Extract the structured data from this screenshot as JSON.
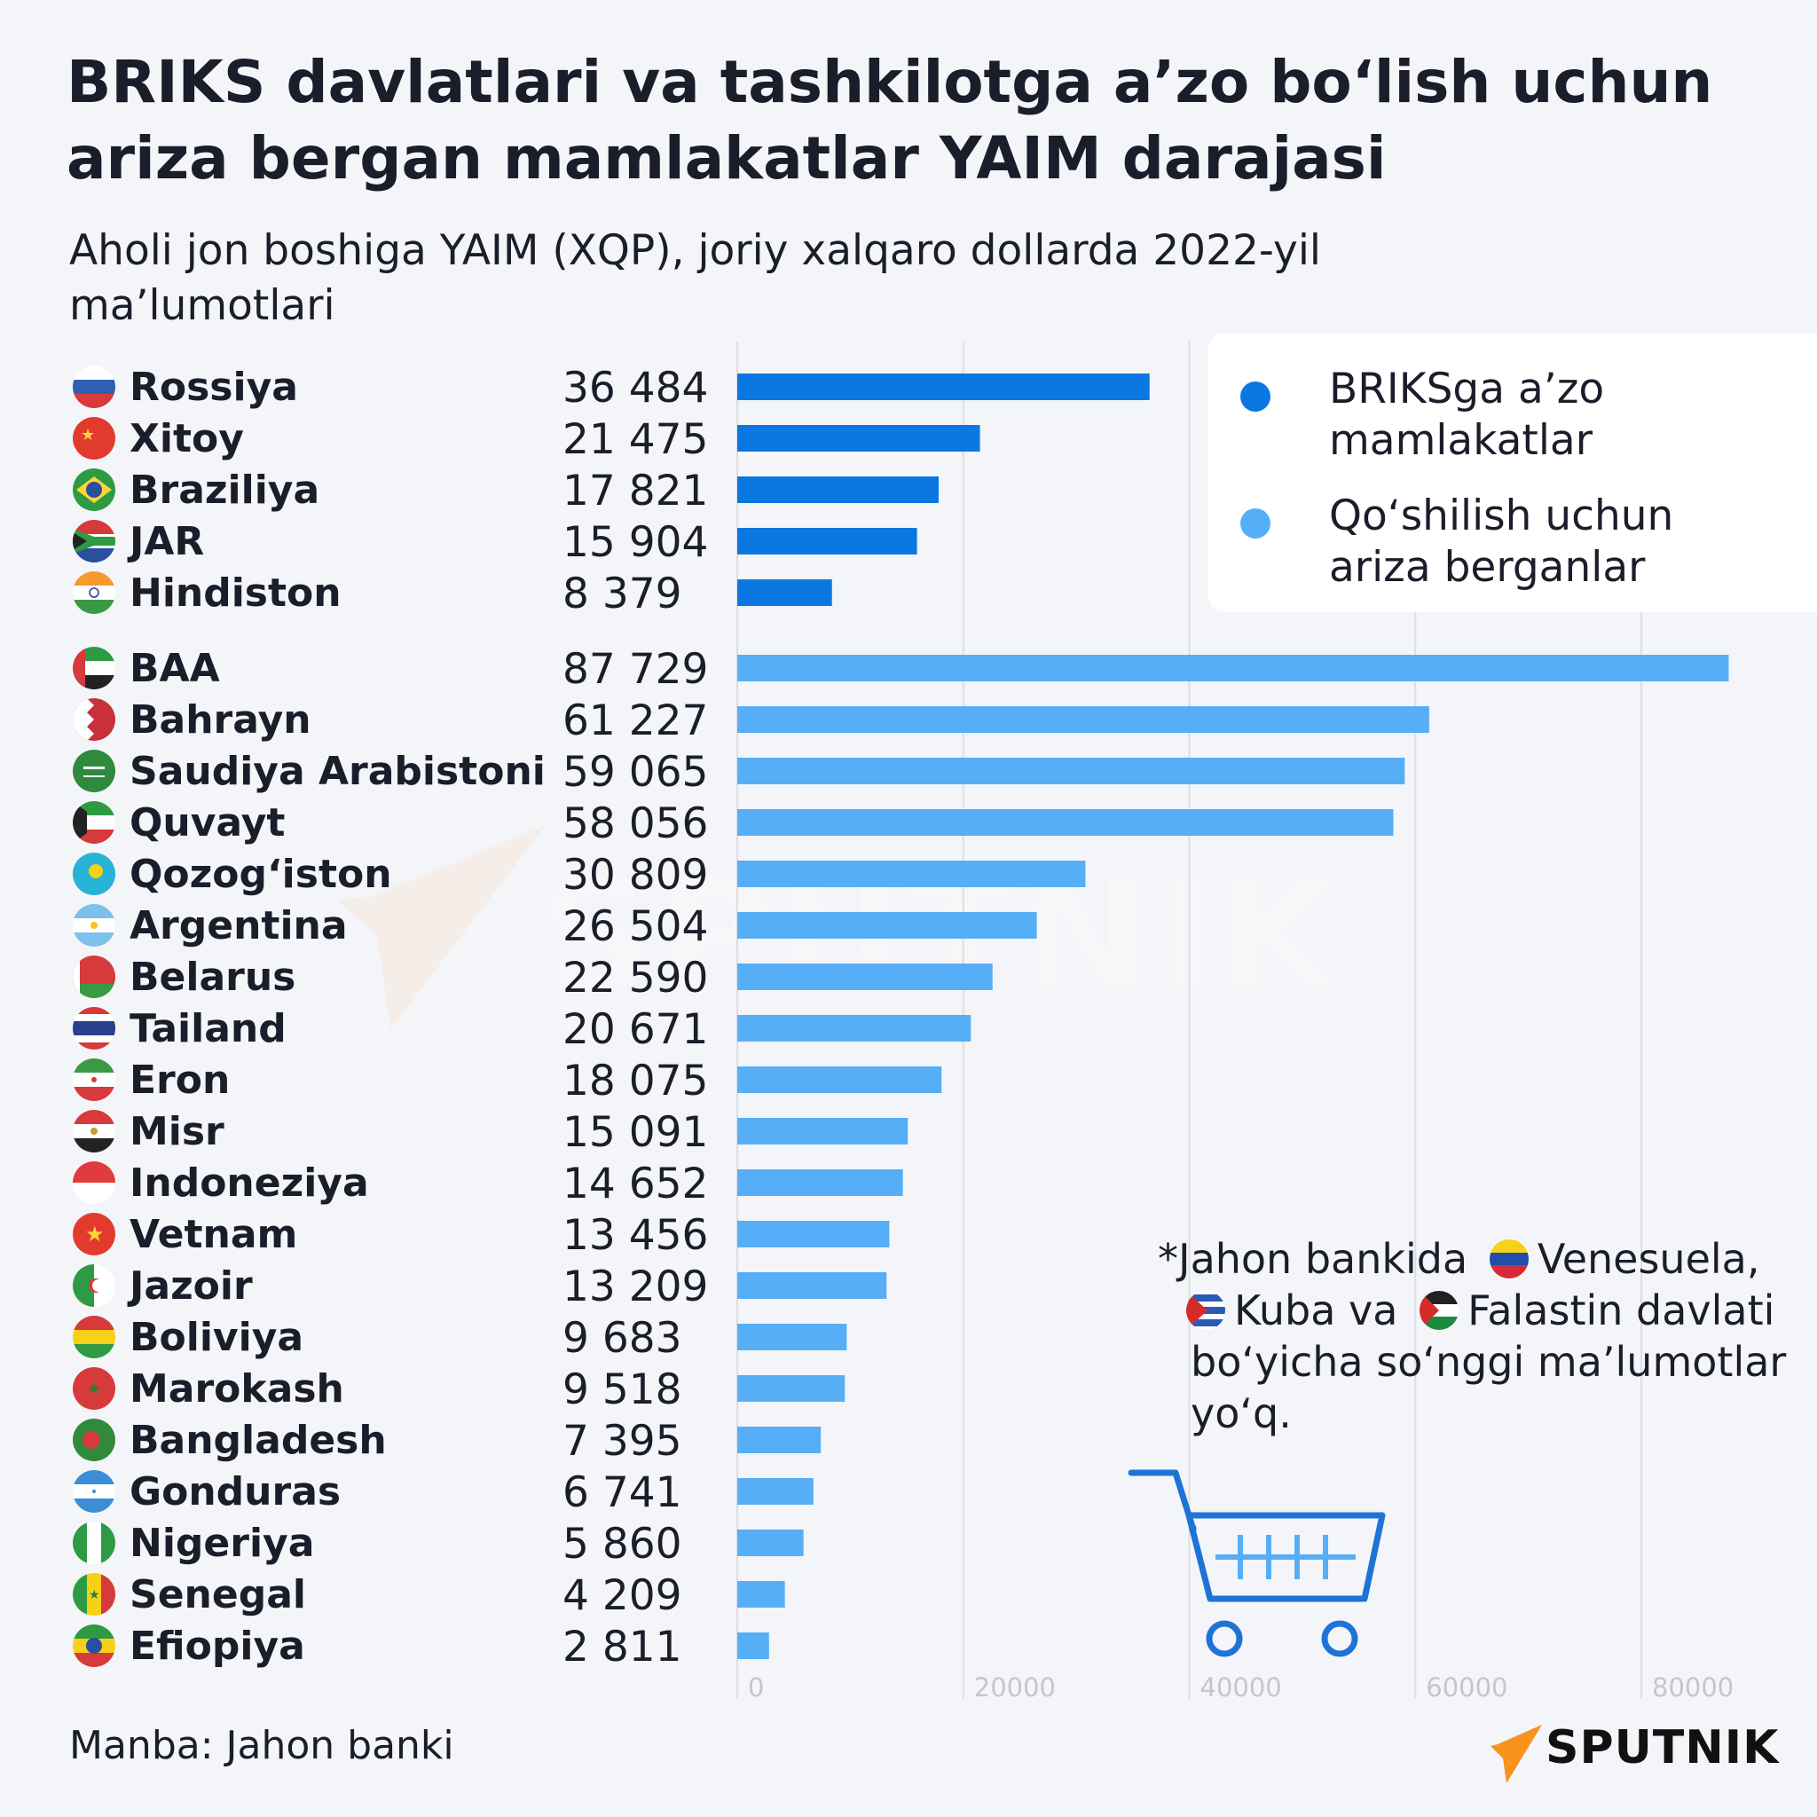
{
  "title_lines": [
    "BRIKS davlatlari va tashkilotga a’zo bo‘lish uchun",
    "ariza bergan mamlakatlar YAIM darajasi"
  ],
  "subtitle_lines": [
    "Aholi jon boshiga YAIM (XQP), joriy xalqaro dollarda 2022-yil",
    "ma’lumotlari"
  ],
  "legend": {
    "members": {
      "lines": [
        "BRIKSga a’zo",
        "mamlakatlar"
      ],
      "color": "#0a78e0"
    },
    "applicants": {
      "lines": [
        "Qo‘shilish uchun",
        "ariza berganlar"
      ],
      "color": "#56aef7"
    }
  },
  "note": {
    "line1_prefix": "*Jahon bankida",
    "line1_country": "Venesuela,",
    "line2_country1": "Kuba va",
    "line2_country2": "Falastin davlati",
    "line3": "bo‘yicha so‘nggi ma’lumotlar",
    "line4": "yo‘q."
  },
  "source": "Manba: Jahon banki",
  "brand": "SPUTNIK",
  "watermark": "SPUTNIK",
  "chart_data": {
    "type": "bar",
    "orientation": "horizontal",
    "xlim": [
      0,
      90000
    ],
    "x_ticks": [
      "0",
      "20000",
      "40000",
      "60000",
      "80000"
    ],
    "grid": true,
    "legend_placement": "top-right",
    "groups": [
      {
        "name": "BRIKSga a’zo mamlakatlar",
        "color": "#0a78e0",
        "items": [
          {
            "country": "Rossiya",
            "label": "36 484",
            "value": 36484,
            "flag": "russia-flag"
          },
          {
            "country": "Xitoy",
            "label": "21 475",
            "value": 21475,
            "flag": "china-flag"
          },
          {
            "country": "Braziliya",
            "label": "17 821",
            "value": 17821,
            "flag": "brazil-flag"
          },
          {
            "country": "JAR",
            "label": "15 904",
            "value": 15904,
            "flag": "south-africa-flag"
          },
          {
            "country": "Hindiston",
            "label": "8 379",
            "value": 8379,
            "flag": "india-flag"
          }
        ]
      },
      {
        "name": "Qo‘shilish uchun ariza berganlar",
        "color": "#56aef7",
        "items": [
          {
            "country": "BAA",
            "label": "87 729",
            "value": 87729,
            "flag": "uae-flag"
          },
          {
            "country": "Bahrayn",
            "label": "61 227",
            "value": 61227,
            "flag": "bahrain-flag"
          },
          {
            "country": "Saudiya Arabistoni",
            "label": "59 065",
            "value": 59065,
            "flag": "saudi-arabia-flag"
          },
          {
            "country": "Quvayt",
            "label": "58 056",
            "value": 58056,
            "flag": "kuwait-flag"
          },
          {
            "country": "Qozog‘iston",
            "label": "30 809",
            "value": 30809,
            "flag": "kazakhstan-flag"
          },
          {
            "country": "Argentina",
            "label": "26 504",
            "value": 26504,
            "flag": "argentina-flag"
          },
          {
            "country": "Belarus",
            "label": "22 590",
            "value": 22590,
            "flag": "belarus-flag"
          },
          {
            "country": "Tailand",
            "label": "20 671",
            "value": 20671,
            "flag": "thailand-flag"
          },
          {
            "country": "Eron",
            "label": "18 075",
            "value": 18075,
            "flag": "iran-flag"
          },
          {
            "country": "Misr",
            "label": "15 091",
            "value": 15091,
            "flag": "egypt-flag"
          },
          {
            "country": "Indoneziya",
            "label": "14 652",
            "value": 14652,
            "flag": "indonesia-flag"
          },
          {
            "country": "Vetnam",
            "label": "13 456",
            "value": 13456,
            "flag": "vietnam-flag"
          },
          {
            "country": "Jazoir",
            "label": "13 209",
            "value": 13209,
            "flag": "algeria-flag"
          },
          {
            "country": "Boliviya",
            "label": "9 683",
            "value": 9683,
            "flag": "bolivia-flag"
          },
          {
            "country": "Marokash",
            "label": "9 518",
            "value": 9518,
            "flag": "morocco-flag"
          },
          {
            "country": "Bangladesh",
            "label": "7 395",
            "value": 7395,
            "flag": "bangladesh-flag"
          },
          {
            "country": "Gonduras",
            "label": "6 741",
            "value": 6741,
            "flag": "honduras-flag"
          },
          {
            "country": "Nigeriya",
            "label": "5 860",
            "value": 5860,
            "flag": "nigeria-flag"
          },
          {
            "country": "Senegal",
            "label": "4 209",
            "value": 4209,
            "flag": "senegal-flag"
          },
          {
            "country": "Efiopiya",
            "label": "2 811",
            "value": 2811,
            "flag": "ethiopia-flag"
          }
        ]
      }
    ]
  }
}
